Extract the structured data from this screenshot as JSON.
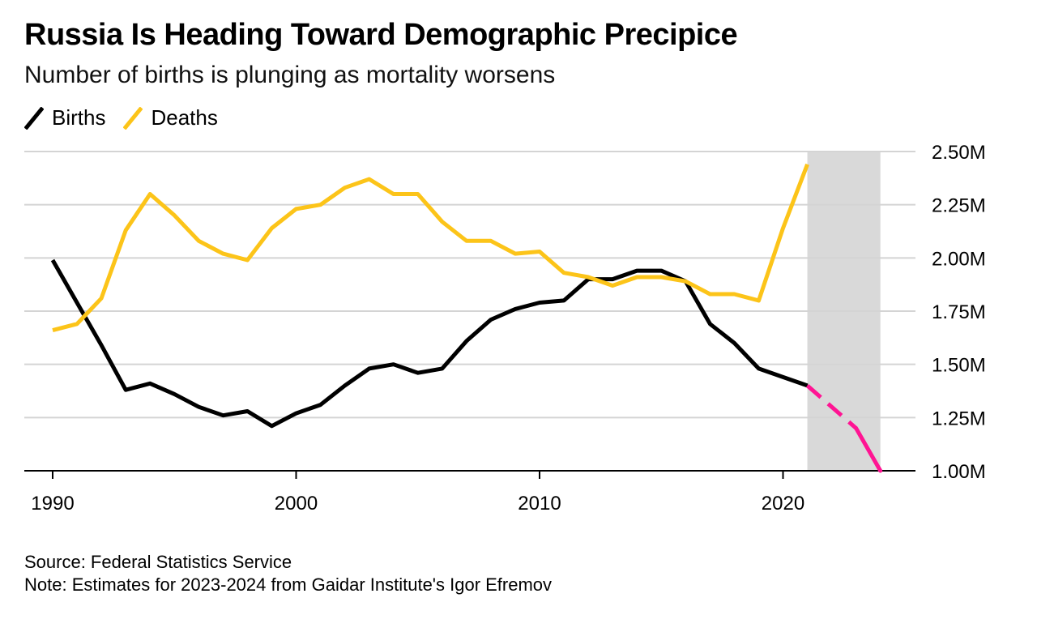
{
  "chart_data": {
    "type": "line",
    "title": "Russia Is Heading Toward Demographic Precipice",
    "subtitle": "Number of births is plunging as mortality worsens",
    "xlim": [
      1990,
      2025
    ],
    "ylim": [
      1.0,
      2.5
    ],
    "x_ticks": [
      1990,
      2000,
      2010,
      2020
    ],
    "x_tick_labels": [
      "1990",
      "2000",
      "2010",
      "2020"
    ],
    "y_ticks": [
      1.0,
      1.25,
      1.5,
      1.75,
      2.0,
      2.25,
      2.5
    ],
    "y_tick_labels": [
      "1.00M",
      "1.25M",
      "1.50M",
      "1.75M",
      "2.00M",
      "2.25M",
      "2.50M"
    ],
    "grid": true,
    "legend_position": "top-left",
    "shaded_region": {
      "x_start": 2021,
      "x_end": 2024,
      "color": "#d9d9d9"
    },
    "series": [
      {
        "name": "Births",
        "color": "#000000",
        "x": [
          1990,
          1991,
          1992,
          1993,
          1994,
          1995,
          1996,
          1997,
          1998,
          1999,
          2000,
          2001,
          2002,
          2003,
          2004,
          2005,
          2006,
          2007,
          2008,
          2009,
          2010,
          2011,
          2012,
          2013,
          2014,
          2015,
          2016,
          2017,
          2018,
          2019,
          2020,
          2021
        ],
        "values": [
          1.99,
          1.79,
          1.59,
          1.38,
          1.41,
          1.36,
          1.3,
          1.26,
          1.28,
          1.21,
          1.27,
          1.31,
          1.4,
          1.48,
          1.5,
          1.46,
          1.48,
          1.61,
          1.71,
          1.76,
          1.79,
          1.8,
          1.9,
          1.9,
          1.94,
          1.94,
          1.89,
          1.69,
          1.6,
          1.48,
          1.44,
          1.4
        ]
      },
      {
        "name": "Deaths",
        "color": "#fcc419",
        "x": [
          1990,
          1991,
          1992,
          1993,
          1994,
          1995,
          1996,
          1997,
          1998,
          1999,
          2000,
          2001,
          2002,
          2003,
          2004,
          2005,
          2006,
          2007,
          2008,
          2009,
          2010,
          2011,
          2012,
          2013,
          2014,
          2015,
          2016,
          2017,
          2018,
          2019,
          2020,
          2021
        ],
        "values": [
          1.66,
          1.69,
          1.81,
          2.13,
          2.3,
          2.2,
          2.08,
          2.02,
          1.99,
          2.14,
          2.23,
          2.25,
          2.33,
          2.37,
          2.3,
          2.3,
          2.17,
          2.08,
          2.08,
          2.02,
          2.03,
          1.93,
          1.91,
          1.87,
          1.91,
          1.91,
          1.89,
          1.83,
          1.83,
          1.8,
          2.14,
          2.44
        ]
      },
      {
        "name": "",
        "color": "#ff1493",
        "estimate": true,
        "x": [
          2021,
          2023,
          2024
        ],
        "values": [
          1.4,
          1.2,
          1.0
        ]
      }
    ]
  },
  "legend": {
    "births_label": "Births",
    "deaths_label": "Deaths"
  },
  "footer": {
    "source": "Source: Federal Statistics Service",
    "note": "Note: Estimates for 2023-2024 from Gaidar Institute's Igor Efremov"
  }
}
